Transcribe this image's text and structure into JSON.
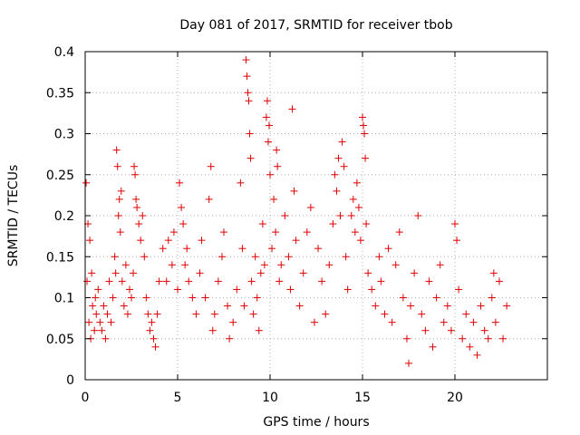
{
  "chart_data": {
    "type": "scatter",
    "title": "Day 081 of 2017, SRMTID for receiver tbob",
    "xlabel": "GPS time / hours",
    "ylabel": "SRMTID / TECUs",
    "xlim": [
      0,
      25
    ],
    "ylim": [
      0,
      0.4
    ],
    "xticks": [
      0,
      5,
      10,
      15,
      20
    ],
    "yticks": [
      0,
      0.05,
      0.1,
      0.15,
      0.2,
      0.25,
      0.3,
      0.35,
      0.4
    ],
    "xtick_labels": [
      "0",
      "5",
      "10",
      "15",
      "20"
    ],
    "ytick_labels": [
      "0",
      "0.05",
      "0.1",
      "0.15",
      "0.2",
      "0.25",
      "0.3",
      "0.35",
      "0.4"
    ],
    "grid": true,
    "series_color": "#e00000",
    "series": [
      {
        "name": "SRMTID",
        "marker": "+",
        "points": [
          [
            0.05,
            0.24
          ],
          [
            0.1,
            0.12
          ],
          [
            0.15,
            0.19
          ],
          [
            0.2,
            0.07
          ],
          [
            0.25,
            0.17
          ],
          [
            0.3,
            0.05
          ],
          [
            0.35,
            0.13
          ],
          [
            0.4,
            0.09
          ],
          [
            0.5,
            0.06
          ],
          [
            0.55,
            0.1
          ],
          [
            0.6,
            0.08
          ],
          [
            0.7,
            0.11
          ],
          [
            0.8,
            0.07
          ],
          [
            0.9,
            0.06
          ],
          [
            1.0,
            0.09
          ],
          [
            1.1,
            0.05
          ],
          [
            1.2,
            0.08
          ],
          [
            1.3,
            0.12
          ],
          [
            1.4,
            0.07
          ],
          [
            1.5,
            0.1
          ],
          [
            1.6,
            0.15
          ],
          [
            1.65,
            0.13
          ],
          [
            1.7,
            0.28
          ],
          [
            1.75,
            0.26
          ],
          [
            1.8,
            0.2
          ],
          [
            1.85,
            0.22
          ],
          [
            1.9,
            0.18
          ],
          [
            1.95,
            0.23
          ],
          [
            2.0,
            0.12
          ],
          [
            2.1,
            0.09
          ],
          [
            2.2,
            0.14
          ],
          [
            2.3,
            0.08
          ],
          [
            2.4,
            0.11
          ],
          [
            2.5,
            0.1
          ],
          [
            2.6,
            0.13
          ],
          [
            2.65,
            0.26
          ],
          [
            2.7,
            0.25
          ],
          [
            2.75,
            0.22
          ],
          [
            2.8,
            0.21
          ],
          [
            2.9,
            0.19
          ],
          [
            3.0,
            0.17
          ],
          [
            3.1,
            0.2
          ],
          [
            3.2,
            0.15
          ],
          [
            3.3,
            0.1
          ],
          [
            3.4,
            0.08
          ],
          [
            3.5,
            0.06
          ],
          [
            3.6,
            0.07
          ],
          [
            3.7,
            0.05
          ],
          [
            3.8,
            0.04
          ],
          [
            3.9,
            0.08
          ],
          [
            4.0,
            0.12
          ],
          [
            4.2,
            0.16
          ],
          [
            4.4,
            0.12
          ],
          [
            4.5,
            0.17
          ],
          [
            4.7,
            0.14
          ],
          [
            4.8,
            0.18
          ],
          [
            5.0,
            0.11
          ],
          [
            5.1,
            0.24
          ],
          [
            5.2,
            0.21
          ],
          [
            5.3,
            0.19
          ],
          [
            5.4,
            0.14
          ],
          [
            5.5,
            0.16
          ],
          [
            5.6,
            0.12
          ],
          [
            5.8,
            0.1
          ],
          [
            6.0,
            0.08
          ],
          [
            6.2,
            0.13
          ],
          [
            6.3,
            0.17
          ],
          [
            6.5,
            0.1
          ],
          [
            6.7,
            0.22
          ],
          [
            6.8,
            0.26
          ],
          [
            6.9,
            0.06
          ],
          [
            7.0,
            0.08
          ],
          [
            7.2,
            0.12
          ],
          [
            7.4,
            0.15
          ],
          [
            7.5,
            0.18
          ],
          [
            7.7,
            0.09
          ],
          [
            7.8,
            0.05
          ],
          [
            8.0,
            0.07
          ],
          [
            8.2,
            0.11
          ],
          [
            8.4,
            0.24
          ],
          [
            8.5,
            0.16
          ],
          [
            8.6,
            0.09
          ],
          [
            8.7,
            0.39
          ],
          [
            8.75,
            0.37
          ],
          [
            8.8,
            0.35
          ],
          [
            8.85,
            0.34
          ],
          [
            8.9,
            0.3
          ],
          [
            8.95,
            0.27
          ],
          [
            9.0,
            0.12
          ],
          [
            9.1,
            0.08
          ],
          [
            9.2,
            0.15
          ],
          [
            9.3,
            0.1
          ],
          [
            9.4,
            0.06
          ],
          [
            9.5,
            0.13
          ],
          [
            9.6,
            0.19
          ],
          [
            9.7,
            0.14
          ],
          [
            9.8,
            0.32
          ],
          [
            9.85,
            0.34
          ],
          [
            9.9,
            0.29
          ],
          [
            9.95,
            0.31
          ],
          [
            10.0,
            0.25
          ],
          [
            10.1,
            0.16
          ],
          [
            10.2,
            0.22
          ],
          [
            10.3,
            0.18
          ],
          [
            10.35,
            0.28
          ],
          [
            10.4,
            0.26
          ],
          [
            10.5,
            0.12
          ],
          [
            10.6,
            0.14
          ],
          [
            10.8,
            0.2
          ],
          [
            11.0,
            0.15
          ],
          [
            11.1,
            0.11
          ],
          [
            11.2,
            0.33
          ],
          [
            11.3,
            0.23
          ],
          [
            11.4,
            0.17
          ],
          [
            11.6,
            0.09
          ],
          [
            11.8,
            0.13
          ],
          [
            12.0,
            0.18
          ],
          [
            12.2,
            0.21
          ],
          [
            12.4,
            0.07
          ],
          [
            12.6,
            0.16
          ],
          [
            12.8,
            0.12
          ],
          [
            13.0,
            0.08
          ],
          [
            13.2,
            0.14
          ],
          [
            13.4,
            0.19
          ],
          [
            13.5,
            0.25
          ],
          [
            13.6,
            0.23
          ],
          [
            13.7,
            0.27
          ],
          [
            13.8,
            0.2
          ],
          [
            13.9,
            0.29
          ],
          [
            14.0,
            0.26
          ],
          [
            14.1,
            0.15
          ],
          [
            14.2,
            0.11
          ],
          [
            14.4,
            0.2
          ],
          [
            14.5,
            0.22
          ],
          [
            14.6,
            0.18
          ],
          [
            14.7,
            0.24
          ],
          [
            14.8,
            0.21
          ],
          [
            14.9,
            0.17
          ],
          [
            15.0,
            0.32
          ],
          [
            15.05,
            0.31
          ],
          [
            15.1,
            0.3
          ],
          [
            15.15,
            0.27
          ],
          [
            15.2,
            0.19
          ],
          [
            15.3,
            0.13
          ],
          [
            15.5,
            0.11
          ],
          [
            15.7,
            0.09
          ],
          [
            15.9,
            0.15
          ],
          [
            16.0,
            0.12
          ],
          [
            16.2,
            0.08
          ],
          [
            16.4,
            0.16
          ],
          [
            16.6,
            0.07
          ],
          [
            16.8,
            0.14
          ],
          [
            17.0,
            0.18
          ],
          [
            17.2,
            0.1
          ],
          [
            17.4,
            0.05
          ],
          [
            17.5,
            0.02
          ],
          [
            17.6,
            0.09
          ],
          [
            17.8,
            0.13
          ],
          [
            18.0,
            0.2
          ],
          [
            18.2,
            0.08
          ],
          [
            18.4,
            0.06
          ],
          [
            18.6,
            0.12
          ],
          [
            18.8,
            0.04
          ],
          [
            19.0,
            0.1
          ],
          [
            19.2,
            0.14
          ],
          [
            19.4,
            0.07
          ],
          [
            19.6,
            0.09
          ],
          [
            19.8,
            0.06
          ],
          [
            20.0,
            0.19
          ],
          [
            20.1,
            0.17
          ],
          [
            20.2,
            0.11
          ],
          [
            20.4,
            0.05
          ],
          [
            20.6,
            0.08
          ],
          [
            20.8,
            0.04
          ],
          [
            21.0,
            0.07
          ],
          [
            21.2,
            0.03
          ],
          [
            21.4,
            0.09
          ],
          [
            21.6,
            0.06
          ],
          [
            21.8,
            0.05
          ],
          [
            22.0,
            0.1
          ],
          [
            22.1,
            0.13
          ],
          [
            22.2,
            0.07
          ],
          [
            22.4,
            0.12
          ],
          [
            22.6,
            0.05
          ],
          [
            22.8,
            0.09
          ]
        ]
      }
    ]
  }
}
